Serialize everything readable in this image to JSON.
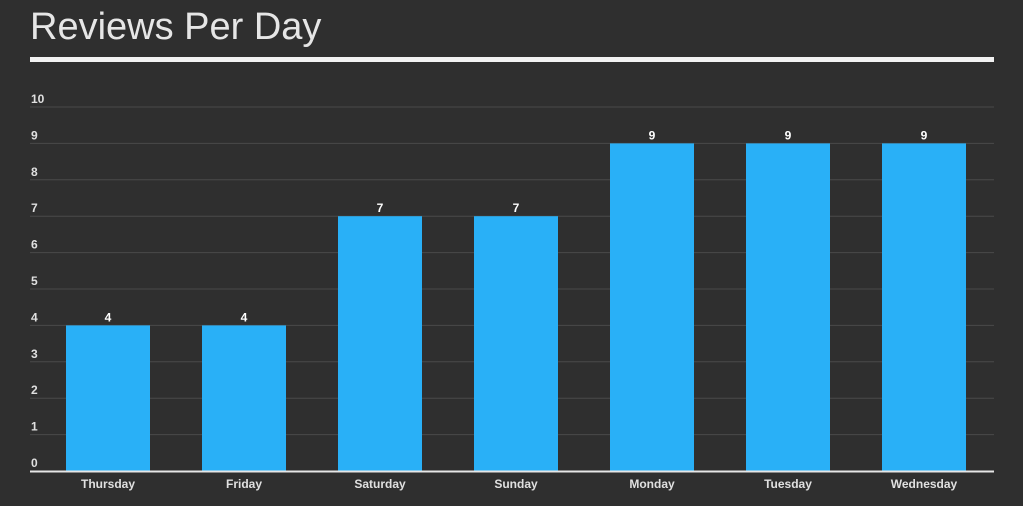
{
  "title": "Reviews Per Day",
  "colors": {
    "background": "#2f2f2f",
    "bar": "#29b0f7",
    "grid": "#4a4a4a",
    "text": "#e0e0e0"
  },
  "chart_data": {
    "type": "bar",
    "title": "Reviews Per Day",
    "xlabel": "",
    "ylabel": "",
    "categories": [
      "Thursday",
      "Friday",
      "Saturday",
      "Sunday",
      "Monday",
      "Tuesday",
      "Wednesday"
    ],
    "values": [
      4,
      4,
      7,
      7,
      9,
      9,
      9
    ],
    "ylim": [
      0,
      10
    ],
    "yticks": [
      0,
      1,
      2,
      3,
      4,
      5,
      6,
      7,
      8,
      9,
      10
    ],
    "grid": true,
    "data_labels": true,
    "legend": "none"
  }
}
